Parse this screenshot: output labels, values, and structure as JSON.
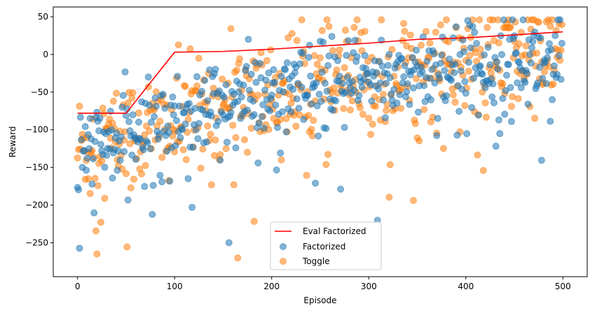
{
  "chart_data": {
    "type": "scatter",
    "title": "",
    "xlabel": "Episode",
    "ylabel": "Reward",
    "xlim": [
      -25,
      525
    ],
    "ylim": [
      -295,
      63
    ],
    "xticks": [
      0,
      100,
      200,
      300,
      400,
      500
    ],
    "yticks": [
      50,
      0,
      -50,
      -100,
      -150,
      -200,
      -250
    ],
    "ytick_labels": [
      "50",
      "0",
      "−50",
      "−100",
      "−150",
      "−200",
      "−250"
    ],
    "legend_placement": "lower-center",
    "grid": false,
    "colors": {
      "eval": "#ff0000",
      "factorized": "#1f77b4",
      "toggle": "#ff7f0e"
    },
    "eval_line": {
      "name": "Eval Factorized",
      "x": [
        0,
        50,
        100,
        150,
        200,
        250,
        300,
        350,
        400,
        450,
        500
      ],
      "y": [
        -78,
        -78,
        3,
        4,
        7,
        11,
        15,
        20,
        22,
        26,
        30
      ]
    },
    "series": [
      {
        "name": "Factorized",
        "trend_x": [
          0,
          50,
          100,
          150,
          200,
          250,
          300,
          350,
          400,
          450,
          500
        ],
        "trend_y": [
          -130,
          -115,
          -85,
          -65,
          -55,
          -45,
          -35,
          -25,
          -18,
          -10,
          -5
        ],
        "spread": 30,
        "n": 500
      },
      {
        "name": "Toggle",
        "trend_x": [
          0,
          50,
          100,
          150,
          200,
          250,
          300,
          350,
          400,
          450,
          500
        ],
        "trend_y": [
          -125,
          -110,
          -95,
          -70,
          -55,
          -45,
          -35,
          -25,
          -15,
          -5,
          0
        ],
        "spread": 40,
        "n": 500
      }
    ]
  }
}
